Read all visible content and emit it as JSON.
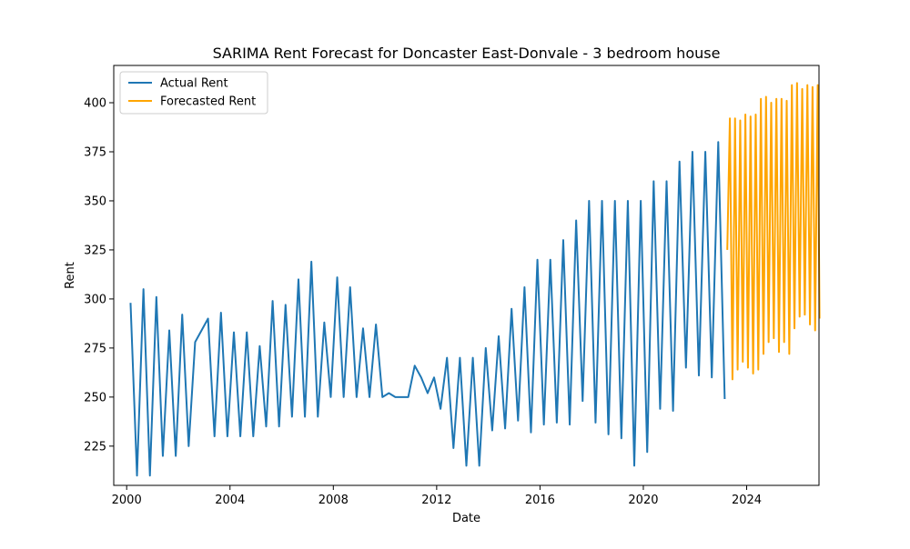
{
  "chart_data": {
    "type": "line",
    "title": "SARIMA Rent Forecast for Doncaster East-Donvale - 3 bedroom house",
    "xlabel": "Date",
    "ylabel": "Rent",
    "xlim": [
      1999.5,
      2026.8
    ],
    "ylim": [
      205,
      419
    ],
    "x_ticks": [
      2000,
      2004,
      2008,
      2012,
      2016,
      2020,
      2024
    ],
    "x_tick_labels": [
      "2000",
      "2004",
      "2008",
      "2012",
      "2016",
      "2020",
      "2024"
    ],
    "y_ticks": [
      225,
      250,
      275,
      300,
      325,
      350,
      375,
      400
    ],
    "y_tick_labels": [
      "225",
      "250",
      "275",
      "300",
      "325",
      "350",
      "375",
      "400"
    ],
    "grid": false,
    "legend_position": "top-left",
    "series": [
      {
        "name": "Actual Rent",
        "color": "#1f77b4",
        "points": [
          [
            2000.15,
            298
          ],
          [
            2000.4,
            210
          ],
          [
            2000.65,
            305
          ],
          [
            2000.9,
            210
          ],
          [
            2001.15,
            301
          ],
          [
            2001.4,
            220
          ],
          [
            2001.65,
            284
          ],
          [
            2001.9,
            220
          ],
          [
            2002.15,
            292
          ],
          [
            2002.4,
            225
          ],
          [
            2002.65,
            278
          ],
          [
            2003.15,
            290
          ],
          [
            2003.4,
            230
          ],
          [
            2003.65,
            293
          ],
          [
            2003.9,
            230
          ],
          [
            2004.15,
            283
          ],
          [
            2004.4,
            230
          ],
          [
            2004.65,
            283
          ],
          [
            2004.9,
            230
          ],
          [
            2005.15,
            276
          ],
          [
            2005.4,
            235
          ],
          [
            2005.65,
            299
          ],
          [
            2005.9,
            235
          ],
          [
            2006.15,
            297
          ],
          [
            2006.4,
            240
          ],
          [
            2006.65,
            310
          ],
          [
            2006.9,
            240
          ],
          [
            2007.15,
            319
          ],
          [
            2007.4,
            240
          ],
          [
            2007.65,
            288
          ],
          [
            2007.9,
            250
          ],
          [
            2008.15,
            311
          ],
          [
            2008.4,
            250
          ],
          [
            2008.65,
            306
          ],
          [
            2008.9,
            250
          ],
          [
            2009.15,
            285
          ],
          [
            2009.4,
            250
          ],
          [
            2009.65,
            287
          ],
          [
            2009.9,
            250
          ],
          [
            2010.15,
            252
          ],
          [
            2010.4,
            250
          ],
          [
            2010.65,
            250
          ],
          [
            2010.9,
            250
          ],
          [
            2011.15,
            266
          ],
          [
            2011.4,
            260
          ],
          [
            2011.65,
            252
          ],
          [
            2011.9,
            260
          ],
          [
            2012.15,
            244
          ],
          [
            2012.4,
            270
          ],
          [
            2012.65,
            224
          ],
          [
            2012.9,
            270
          ],
          [
            2013.15,
            215
          ],
          [
            2013.4,
            270
          ],
          [
            2013.65,
            215
          ],
          [
            2013.9,
            275
          ],
          [
            2014.15,
            233
          ],
          [
            2014.4,
            281
          ],
          [
            2014.65,
            234
          ],
          [
            2014.9,
            295
          ],
          [
            2015.15,
            238
          ],
          [
            2015.4,
            306
          ],
          [
            2015.65,
            232
          ],
          [
            2015.9,
            320
          ],
          [
            2016.15,
            236
          ],
          [
            2016.4,
            320
          ],
          [
            2016.65,
            237
          ],
          [
            2016.9,
            330
          ],
          [
            2017.15,
            236
          ],
          [
            2017.4,
            340
          ],
          [
            2017.65,
            248
          ],
          [
            2017.9,
            350
          ],
          [
            2018.15,
            237
          ],
          [
            2018.4,
            350
          ],
          [
            2018.65,
            231
          ],
          [
            2018.9,
            350
          ],
          [
            2019.15,
            229
          ],
          [
            2019.4,
            350
          ],
          [
            2019.65,
            215
          ],
          [
            2019.9,
            350
          ],
          [
            2020.15,
            222
          ],
          [
            2020.4,
            360
          ],
          [
            2020.65,
            244
          ],
          [
            2020.9,
            360
          ],
          [
            2021.15,
            243
          ],
          [
            2021.4,
            370
          ],
          [
            2021.65,
            265
          ],
          [
            2021.9,
            375
          ],
          [
            2022.15,
            261
          ],
          [
            2022.4,
            375
          ],
          [
            2022.65,
            260
          ],
          [
            2022.9,
            380
          ],
          [
            2023.15,
            249
          ]
        ]
      },
      {
        "name": "Forecasted Rent",
        "color": "#ffa500",
        "points": [
          [
            2023.25,
            325
          ],
          [
            2023.35,
            392
          ],
          [
            2023.45,
            259
          ],
          [
            2023.55,
            392
          ],
          [
            2023.65,
            264
          ],
          [
            2023.75,
            391
          ],
          [
            2023.85,
            268
          ],
          [
            2023.95,
            394
          ],
          [
            2024.05,
            265
          ],
          [
            2024.15,
            393
          ],
          [
            2024.25,
            262
          ],
          [
            2024.35,
            394
          ],
          [
            2024.45,
            264
          ],
          [
            2024.55,
            402
          ],
          [
            2024.65,
            272
          ],
          [
            2024.75,
            403
          ],
          [
            2024.85,
            278
          ],
          [
            2024.95,
            400
          ],
          [
            2025.05,
            280
          ],
          [
            2025.15,
            402
          ],
          [
            2025.25,
            273
          ],
          [
            2025.35,
            402
          ],
          [
            2025.45,
            278
          ],
          [
            2025.55,
            401
          ],
          [
            2025.65,
            272
          ],
          [
            2025.75,
            409
          ],
          [
            2025.85,
            285
          ],
          [
            2025.95,
            410
          ],
          [
            2026.05,
            291
          ],
          [
            2026.15,
            407
          ],
          [
            2026.25,
            292
          ],
          [
            2026.35,
            409
          ],
          [
            2026.45,
            287
          ],
          [
            2026.55,
            408
          ],
          [
            2026.65,
            284
          ],
          [
            2026.75,
            409
          ],
          [
            2026.82,
            290
          ]
        ]
      }
    ]
  }
}
